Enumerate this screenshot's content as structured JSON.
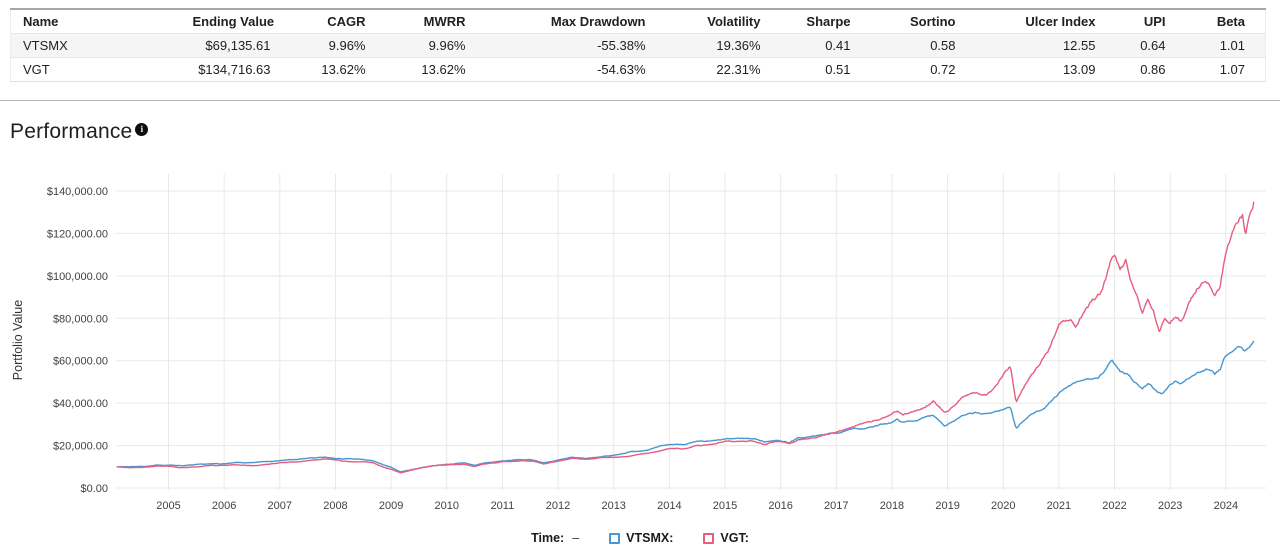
{
  "table": {
    "columns": [
      "Name",
      "Ending Value",
      "CAGR",
      "MWRR",
      "Max Drawdown",
      "Volatility",
      "Sharpe",
      "Sortino",
      "Ulcer Index",
      "UPI",
      "Beta"
    ],
    "rows": [
      {
        "cells": [
          "VTSMX",
          "$69,135.61",
          "9.96%",
          "9.96%",
          "-55.38%",
          "19.36%",
          "0.41",
          "0.58",
          "12.55",
          "0.64",
          "1.01"
        ]
      },
      {
        "cells": [
          "VGT",
          "$134,716.63",
          "13.62%",
          "13.62%",
          "-54.63%",
          "22.31%",
          "0.51",
          "0.72",
          "13.09",
          "0.86",
          "1.07"
        ]
      }
    ]
  },
  "section": {
    "title": "Performance",
    "info_icon": "i"
  },
  "chart_data": {
    "type": "line",
    "title": "Performance",
    "xlabel": "",
    "ylabel": "Portfolio Value",
    "grid": true,
    "xlim": [
      2004.08,
      2024.5
    ],
    "ylim": [
      0,
      148000
    ],
    "x_ticks": [
      2005,
      2006,
      2007,
      2008,
      2009,
      2010,
      2011,
      2012,
      2013,
      2014,
      2015,
      2016,
      2017,
      2018,
      2019,
      2020,
      2021,
      2022,
      2023,
      2024
    ],
    "y_ticks": [
      {
        "value": 0,
        "label": "$0.00"
      },
      {
        "value": 20000,
        "label": "$20,000.00"
      },
      {
        "value": 40000,
        "label": "$40,000.00"
      },
      {
        "value": 60000,
        "label": "$60,000.00"
      },
      {
        "value": 80000,
        "label": "$80,000.00"
      },
      {
        "value": 100000,
        "label": "$100,000.00"
      },
      {
        "value": 120000,
        "label": "$120,000.00"
      },
      {
        "value": 140000,
        "label": "$140,000.00"
      }
    ],
    "legend": {
      "position": "bottom",
      "time_label": "Time:",
      "time_value": "–",
      "items": [
        {
          "label": "VTSMX:",
          "color": "#4697d2"
        },
        {
          "label": "VGT:",
          "color": "#e75d7f"
        }
      ]
    },
    "series": [
      {
        "name": "VTSMX",
        "color": "#4697d2",
        "ending_value": 69135.61,
        "x": [
          2004.08,
          2004.3,
          2004.6,
          2004.8,
          2005.0,
          2005.25,
          2005.5,
          2005.75,
          2006.0,
          2006.25,
          2006.5,
          2006.75,
          2007.0,
          2007.3,
          2007.55,
          2007.8,
          2008.0,
          2008.25,
          2008.5,
          2008.7,
          2008.85,
          2009.0,
          2009.17,
          2009.3,
          2009.5,
          2009.75,
          2010.0,
          2010.3,
          2010.5,
          2010.75,
          2011.0,
          2011.3,
          2011.55,
          2011.75,
          2012.0,
          2012.25,
          2012.5,
          2012.75,
          2013.0,
          2013.25,
          2013.5,
          2013.75,
          2014.0,
          2014.25,
          2014.5,
          2014.75,
          2015.0,
          2015.3,
          2015.55,
          2015.7,
          2015.85,
          2016.0,
          2016.15,
          2016.3,
          2016.5,
          2016.75,
          2017.0,
          2017.25,
          2017.5,
          2017.75,
          2018.0,
          2018.1,
          2018.2,
          2018.4,
          2018.6,
          2018.75,
          2018.95,
          2019.0,
          2019.25,
          2019.5,
          2019.7,
          2019.85,
          2020.0,
          2020.13,
          2020.23,
          2020.35,
          2020.5,
          2020.65,
          2020.8,
          2021.0,
          2021.2,
          2021.4,
          2021.55,
          2021.7,
          2021.85,
          2021.95,
          2022.0,
          2022.1,
          2022.25,
          2022.35,
          2022.5,
          2022.6,
          2022.75,
          2022.85,
          2023.0,
          2023.1,
          2023.2,
          2023.35,
          2023.5,
          2023.65,
          2023.8,
          2023.9,
          2024.0,
          2024.15,
          2024.25,
          2024.35,
          2024.45,
          2024.5
        ],
        "y": [
          10000,
          10100,
          10300,
          10700,
          10800,
          10600,
          10900,
          11200,
          11400,
          11900,
          11700,
          12500,
          13100,
          13400,
          14100,
          14300,
          13800,
          13600,
          13300,
          12600,
          10900,
          9600,
          7600,
          8300,
          9400,
          10500,
          11200,
          11900,
          10800,
          11900,
          12700,
          13300,
          13200,
          11900,
          13100,
          14200,
          13900,
          14800,
          15300,
          16900,
          17700,
          18900,
          20300,
          20700,
          21600,
          21800,
          22800,
          23400,
          23300,
          21700,
          22600,
          22300,
          21500,
          23300,
          24000,
          24900,
          26000,
          27300,
          28200,
          29300,
          31200,
          32300,
          30900,
          31800,
          33200,
          34400,
          29700,
          30500,
          33800,
          35100,
          34600,
          36000,
          36900,
          38300,
          28200,
          31500,
          34600,
          36500,
          39500,
          44500,
          47800,
          50000,
          51500,
          51000,
          55500,
          60000,
          58500,
          55500,
          54000,
          50500,
          46800,
          48800,
          45200,
          44500,
          48500,
          50000,
          49000,
          52500,
          54500,
          56000,
          53500,
          55500,
          62000,
          64500,
          66200,
          63800,
          67200,
          69135.61
        ]
      },
      {
        "name": "VGT",
        "color": "#e75d7f",
        "ending_value": 134716.63,
        "x": [
          2004.08,
          2004.3,
          2004.6,
          2004.8,
          2005.0,
          2005.2,
          2005.5,
          2005.75,
          2006.0,
          2006.2,
          2006.5,
          2006.75,
          2007.0,
          2007.3,
          2007.55,
          2007.8,
          2008.0,
          2008.25,
          2008.5,
          2008.7,
          2008.85,
          2009.0,
          2009.17,
          2009.3,
          2009.5,
          2009.75,
          2010.0,
          2010.3,
          2010.5,
          2010.75,
          2011.0,
          2011.3,
          2011.55,
          2011.75,
          2012.0,
          2012.25,
          2012.5,
          2012.75,
          2013.0,
          2013.25,
          2013.5,
          2013.75,
          2014.0,
          2014.25,
          2014.5,
          2014.75,
          2015.0,
          2015.3,
          2015.55,
          2015.7,
          2015.85,
          2016.0,
          2016.15,
          2016.3,
          2016.5,
          2016.75,
          2017.0,
          2017.25,
          2017.5,
          2017.75,
          2018.0,
          2018.1,
          2018.2,
          2018.4,
          2018.6,
          2018.75,
          2018.95,
          2019.0,
          2019.25,
          2019.5,
          2019.7,
          2019.85,
          2020.0,
          2020.13,
          2020.23,
          2020.35,
          2020.5,
          2020.65,
          2020.8,
          2021.0,
          2021.2,
          2021.3,
          2021.45,
          2021.6,
          2021.75,
          2021.85,
          2021.95,
          2022.0,
          2022.1,
          2022.2,
          2022.3,
          2022.4,
          2022.5,
          2022.6,
          2022.7,
          2022.8,
          2022.9,
          2023.0,
          2023.1,
          2023.2,
          2023.35,
          2023.5,
          2023.65,
          2023.8,
          2023.9,
          2024.0,
          2024.1,
          2024.2,
          2024.3,
          2024.35,
          2024.42,
          2024.47,
          2024.5
        ],
        "y": [
          10000,
          9600,
          9900,
          10400,
          10300,
          9700,
          10100,
          10600,
          10700,
          11000,
          10300,
          11200,
          11800,
          12100,
          13000,
          13700,
          13200,
          12400,
          12500,
          11600,
          9800,
          8800,
          7100,
          8000,
          9300,
          10500,
          11000,
          11500,
          10300,
          11600,
          12300,
          12700,
          12600,
          11300,
          12500,
          13900,
          13500,
          14300,
          14200,
          15000,
          15900,
          17100,
          18400,
          18700,
          20000,
          20500,
          21600,
          22100,
          22000,
          20500,
          21800,
          21900,
          20900,
          22600,
          23400,
          24700,
          26000,
          28200,
          30100,
          31900,
          34600,
          36200,
          34700,
          36600,
          38500,
          41200,
          35200,
          36200,
          42800,
          45200,
          44600,
          47500,
          53500,
          57500,
          40500,
          46500,
          53500,
          59000,
          65000,
          78000,
          80500,
          77500,
          84000,
          88500,
          92000,
          98500,
          109000,
          110000,
          104000,
          107500,
          98000,
          92000,
          84000,
          91500,
          84500,
          74000,
          79500,
          77000,
          81500,
          79000,
          88000,
          94500,
          97500,
          91500,
          96000,
          112000,
          118000,
          124500,
          128000,
          118500,
          126500,
          130000,
          134716.63
        ]
      }
    ]
  }
}
